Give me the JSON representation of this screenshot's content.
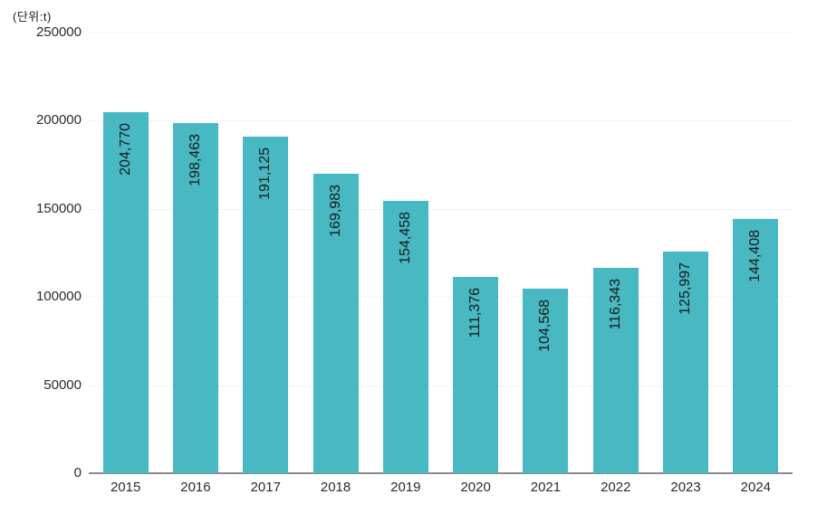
{
  "unit_label": "(단위:t)",
  "colors": {
    "background": "#ffffff",
    "bar": "#48b8c2",
    "bar_label_text": "#1a1a1a",
    "axis_text": "#2b2b2b",
    "gridline": "#f2f2f2",
    "axis_line": "#8a8a8a"
  },
  "chart_data": {
    "type": "bar",
    "title": "",
    "unit": "(단위:t)",
    "categories": [
      "2015",
      "2016",
      "2017",
      "2018",
      "2019",
      "2020",
      "2021",
      "2022",
      "2023",
      "2024"
    ],
    "values": [
      204770,
      198463,
      191125,
      169983,
      154458,
      111376,
      104568,
      116343,
      125997,
      144408
    ],
    "value_labels": [
      "204,770",
      "198,463",
      "191,125",
      "169,983",
      "154,458",
      "111,376",
      "104,568",
      "116,343",
      "125,997",
      "144,408"
    ],
    "value_label_orientation": "rotated-90-bottom-to-top",
    "y_ticks": [
      0,
      50000,
      100000,
      150000,
      200000,
      250000
    ],
    "y_tick_labels": [
      "0",
      "50000",
      "100000",
      "150000",
      "200000",
      "250000"
    ],
    "ylim": [
      0,
      250000
    ],
    "xlabel": "",
    "ylabel": "",
    "grid": "horizontal",
    "legend": "none"
  }
}
